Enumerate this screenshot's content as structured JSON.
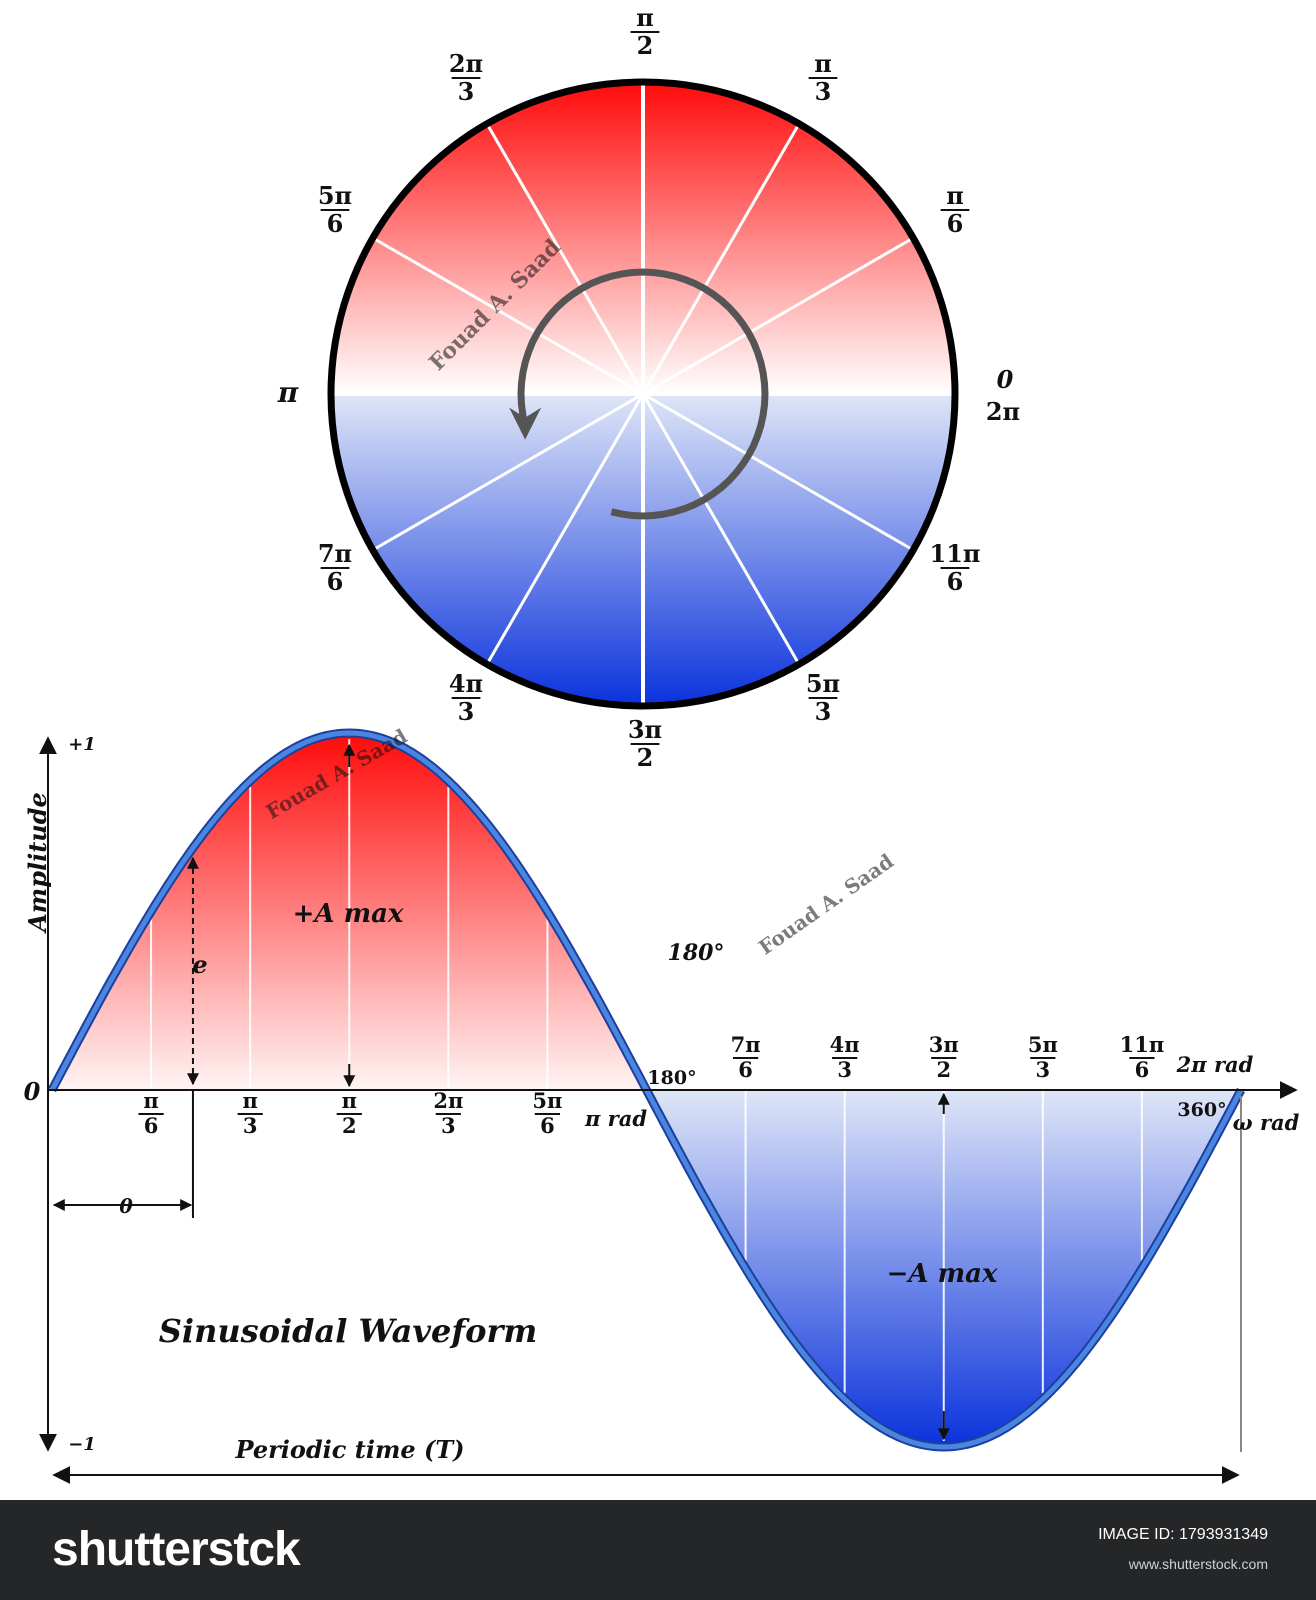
{
  "circle": {
    "labels": [
      {
        "id": "pi-over-2",
        "num": "π",
        "den": "2"
      },
      {
        "id": "pi-over-3",
        "num": "π",
        "den": "3"
      },
      {
        "id": "2pi-over-3",
        "num": "2π",
        "den": "3"
      },
      {
        "id": "pi-over-6",
        "num": "π",
        "den": "6"
      },
      {
        "id": "5pi-over-6",
        "num": "5π",
        "den": "6"
      },
      {
        "id": "pi",
        "text": "π"
      },
      {
        "id": "zero-2pi",
        "lines": [
          "0",
          "2π"
        ]
      },
      {
        "id": "7pi-over-6",
        "num": "7π",
        "den": "6"
      },
      {
        "id": "11pi-over-6",
        "num": "11π",
        "den": "6"
      },
      {
        "id": "4pi-over-3",
        "num": "4π",
        "den": "3"
      },
      {
        "id": "5pi-over-3",
        "num": "5π",
        "den": "3"
      },
      {
        "id": "3pi-over-2",
        "num": "3π",
        "den": "2"
      }
    ],
    "colors": {
      "top": "#ff1010",
      "mid": "#ffffff",
      "bottom": "#0a38dc",
      "ring": "#000000",
      "arrow": "#555555"
    }
  },
  "wave": {
    "title": "Sinusoidal Waveform",
    "y_axis_label": "Amplitude",
    "y_top": "+1",
    "y_bottom": "−1",
    "origin": "0",
    "pos_max": "+A max",
    "neg_max": "−A max",
    "e_label": "e",
    "theta_label": "θ",
    "deg_180_a": "180°",
    "deg_180_b": "180°",
    "deg_360": "360°",
    "pi_rad": "π rad",
    "two_pi_rad": "2π rad",
    "omega_rad": "ω rad",
    "period_label": "Periodic time (T)",
    "ticks_pos": [
      {
        "num": "π",
        "den": "6"
      },
      {
        "num": "π",
        "den": "3"
      },
      {
        "num": "π",
        "den": "2"
      },
      {
        "num": "2π",
        "den": "3"
      },
      {
        "num": "5π",
        "den": "6"
      }
    ],
    "ticks_neg": [
      {
        "num": "7π",
        "den": "6"
      },
      {
        "num": "4π",
        "den": "3"
      },
      {
        "num": "3π",
        "den": "2"
      },
      {
        "num": "5π",
        "den": "3"
      },
      {
        "num": "11π",
        "den": "6"
      }
    ],
    "colors": {
      "curve": "#3b6fd0",
      "pos_fill": "#ff1010",
      "neg_fill": "#0a38dc",
      "title": "#0c1f6e"
    }
  },
  "watermarks": {
    "author": "Fouad A. Saad",
    "brand": "shutterstock"
  },
  "footer": {
    "logo": "shutterstck",
    "image_id": "IMAGE ID: 1793931349",
    "site": "www.shutterstock.com"
  }
}
